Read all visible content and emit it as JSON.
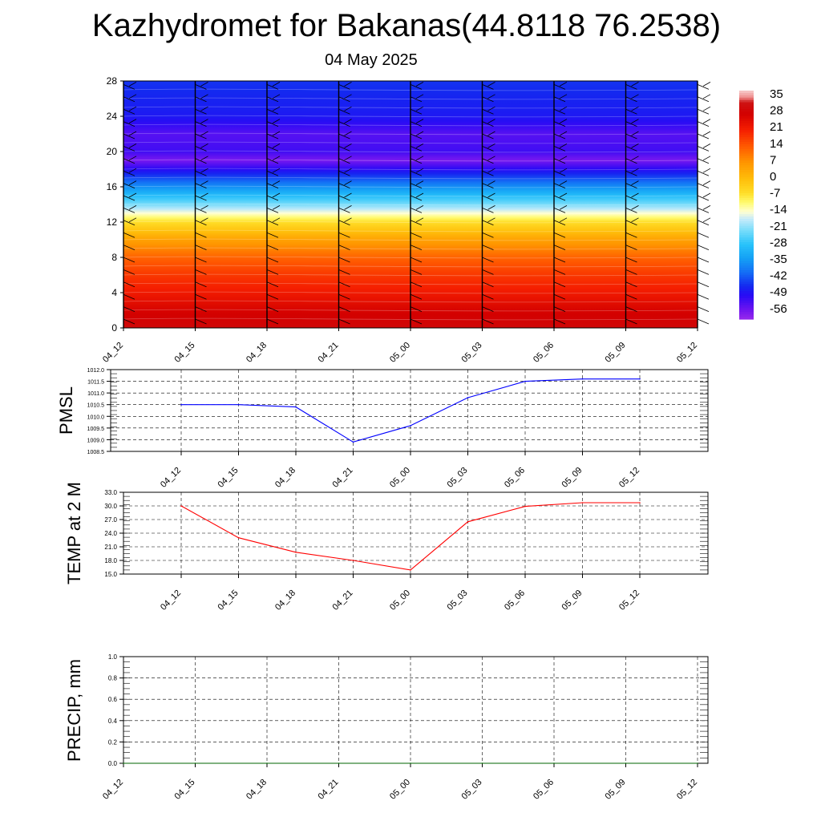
{
  "header": {
    "title": "Kazhydromet for Bakanas(44.8118 76.2538)",
    "subtitle": "04 May 2025"
  },
  "chart_data": [
    {
      "type": "heatmap",
      "id": "temperature-profile",
      "x_ticks": [
        "04_12",
        "04_15",
        "04_18",
        "04_21",
        "05_00",
        "05_03",
        "05_06",
        "05_09",
        "05_12"
      ],
      "y_ticks": [
        "0",
        "4",
        "8",
        "12",
        "16",
        "20",
        "24",
        "28"
      ],
      "ylim": [
        0,
        28
      ],
      "colorbar_labels": [
        "35",
        "28",
        "21",
        "14",
        "7",
        "0",
        "-7",
        "-14",
        "-21",
        "-28",
        "-35",
        "-42",
        "-49",
        "-56"
      ],
      "colorbar_range": [
        -60,
        38
      ],
      "profile_level": [
        0,
        2,
        4,
        6,
        8,
        10,
        12,
        13,
        14,
        16,
        18,
        19,
        20,
        22,
        24,
        28
      ],
      "profile_temp": [
        30,
        27,
        22,
        18,
        13,
        5,
        -6,
        -14,
        -22,
        -36,
        -50,
        -57,
        -52,
        -54,
        -48,
        -45
      ],
      "wind_barbs": "present"
    },
    {
      "type": "line",
      "id": "pmsl",
      "ylabel": "PMSL",
      "x": [
        "04_12",
        "04_15",
        "04_18",
        "04_21",
        "05_00",
        "05_03",
        "05_06",
        "05_09",
        "05_12"
      ],
      "values": [
        1010.5,
        1010.5,
        1010.4,
        1008.9,
        1009.6,
        1010.8,
        1011.5,
        1011.6,
        1011.6
      ],
      "yticks": [
        "1012.0",
        "1011.5",
        "1011.0",
        "1010.5",
        "1010.0",
        "1009.5",
        "1009.0",
        "1008.5"
      ],
      "ylim": [
        1008.5,
        1012.0
      ],
      "color": "#0000ff",
      "grid": true
    },
    {
      "type": "line",
      "id": "temp2m",
      "ylabel": "TEMP at 2 M",
      "x": [
        "04_12",
        "04_15",
        "04_18",
        "04_21",
        "05_00",
        "05_03",
        "05_06",
        "05_09",
        "05_12"
      ],
      "values": [
        30.0,
        23.0,
        19.8,
        18.0,
        15.9,
        26.5,
        29.9,
        30.7,
        30.7
      ],
      "yticks": [
        "33.0",
        "30.0",
        "27.0",
        "24.0",
        "21.0",
        "18.0",
        "15.0"
      ],
      "ylim": [
        15.0,
        33.0
      ],
      "color": "#ff0000",
      "grid": true
    },
    {
      "type": "line",
      "id": "precip",
      "ylabel": "PRECIP, mm",
      "x": [
        "04_12",
        "04_15",
        "04_18",
        "04_21",
        "05_00",
        "05_03",
        "05_06",
        "05_09",
        "05_12"
      ],
      "values": [
        0,
        0,
        0,
        0,
        0,
        0,
        0,
        0,
        0
      ],
      "yticks": [
        "1.0",
        "0.8",
        "0.6",
        "0.4",
        "0.2",
        "0.0"
      ],
      "ylim": [
        0,
        1.0
      ],
      "color": "#006400",
      "grid": true
    }
  ]
}
